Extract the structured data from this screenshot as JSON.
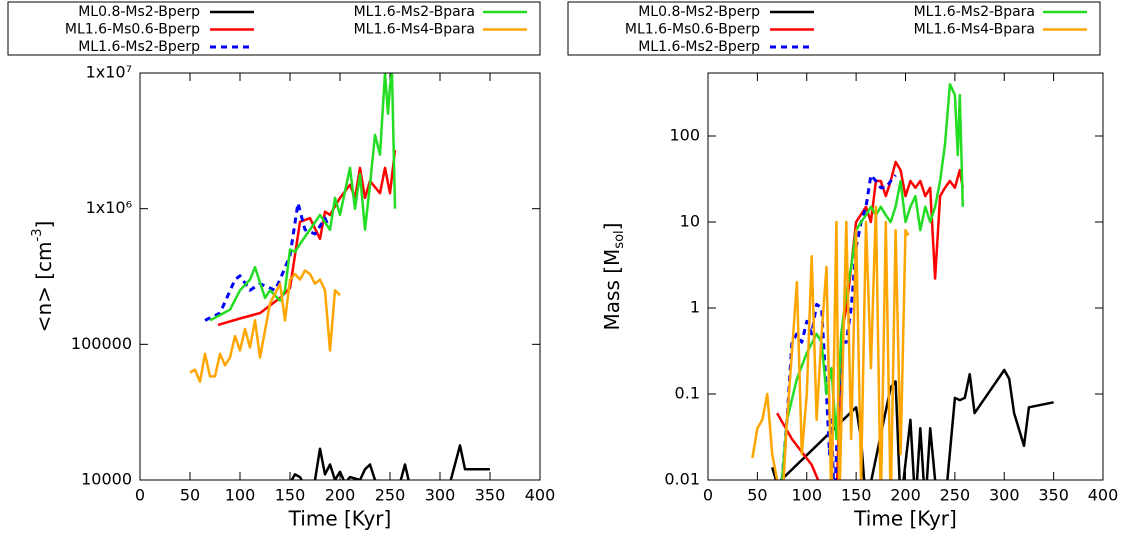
{
  "chart_data": [
    {
      "type": "line",
      "xlabel": "Time [Kyr]",
      "ylabel": {
        "text": "<n> [cm",
        "sup": "-3",
        "end": "]"
      },
      "xlim": [
        0,
        400
      ],
      "xticks": [
        0,
        50,
        100,
        150,
        200,
        250,
        300,
        350,
        400
      ],
      "ylim": [
        10000,
        10000000
      ],
      "ylog": true,
      "yticks": [
        10000,
        100000,
        {
          "value": 1000000,
          "label": "1x10⁶"
        },
        {
          "value": 10000000,
          "label": "1x10⁷"
        }
      ],
      "series": [
        {
          "name": "ML0.8-Ms2-Bperp",
          "color": "#000000",
          "x": [
            150,
            155,
            160,
            165,
            170,
            175,
            180,
            185,
            190,
            195,
            200,
            205,
            210,
            220,
            225,
            230,
            235,
            240,
            250,
            260,
            265,
            270,
            310,
            320,
            325,
            350
          ],
          "values": [
            9500,
            11000,
            10500,
            9000,
            9500,
            10000,
            17000,
            11000,
            13000,
            10000,
            11500,
            9500,
            10500,
            10000,
            12000,
            13000,
            10000,
            9500,
            9000,
            9500,
            13000,
            9000,
            9500,
            18000,
            12000,
            12000
          ]
        },
        {
          "name": "ML1.6-Ms0.6-Bperp",
          "color": "#ff0000",
          "x": [
            78,
            100,
            120,
            140,
            150,
            160,
            170,
            180,
            185,
            190,
            200,
            210,
            215,
            220,
            225,
            230,
            240,
            245,
            250,
            255
          ],
          "values": [
            139000,
            155000,
            170000,
            220000,
            260000,
            800000,
            850000,
            600000,
            950000,
            900000,
            1200000,
            1500000,
            1200000,
            2000000,
            1200000,
            1600000,
            1300000,
            2000000,
            1300000,
            2700000
          ]
        },
        {
          "name": "ML1.6-Ms2-Bperp",
          "color": "#0000ff",
          "dash": true,
          "x": [
            65,
            80,
            95,
            100,
            110,
            120,
            135,
            140,
            150,
            158,
            165,
            175,
            185,
            190
          ],
          "values": [
            150000,
            170000,
            300000,
            320000,
            250000,
            280000,
            250000,
            300000,
            450000,
            1100000,
            700000,
            650000,
            850000,
            700000
          ]
        },
        {
          "name": "ML1.6-Ms2-Bpara",
          "color": "#22dd22",
          "x": [
            70,
            90,
            100,
            110,
            115,
            125,
            130,
            140,
            145,
            150,
            155,
            160,
            170,
            180,
            190,
            195,
            200,
            210,
            215,
            220,
            225,
            230,
            235,
            240,
            245,
            248,
            250,
            252,
            255
          ],
          "values": [
            150000,
            180000,
            250000,
            300000,
            370000,
            220000,
            250000,
            210000,
            250000,
            500000,
            480000,
            550000,
            700000,
            900000,
            700000,
            1200000,
            900000,
            2000000,
            1000000,
            1800000,
            700000,
            1500000,
            3500000,
            2500000,
            10000000,
            5000000,
            8000000,
            10000000,
            1000000
          ]
        },
        {
          "name": "ML1.6-Ms4-Bpara",
          "color": "#ffa500",
          "x": [
            50,
            55,
            60,
            65,
            70,
            75,
            80,
            85,
            90,
            95,
            100,
            105,
            110,
            115,
            120,
            130,
            140,
            145,
            150,
            155,
            160,
            165,
            170,
            175,
            180,
            185,
            190,
            195,
            200
          ],
          "values": [
            62000,
            65000,
            53000,
            85000,
            58000,
            58000,
            85000,
            70000,
            80000,
            115000,
            90000,
            130000,
            95000,
            150000,
            80000,
            200000,
            280000,
            150000,
            300000,
            330000,
            300000,
            350000,
            330000,
            280000,
            300000,
            250000,
            90000,
            250000,
            230000
          ]
        }
      ]
    },
    {
      "type": "line",
      "xlabel": "Time [Kyr]",
      "ylabel": {
        "text": "Mass [M",
        "sub": "sol",
        "end": "]"
      },
      "xlim": [
        0,
        400
      ],
      "xticks": [
        0,
        50,
        100,
        150,
        200,
        250,
        300,
        350,
        400
      ],
      "ylim": [
        0.01,
        540
      ],
      "ylog": true,
      "yticks": [
        0.01,
        0.1,
        1,
        10,
        100
      ],
      "series": [
        {
          "name": "ML0.8-Ms2-Bperp",
          "color": "#000000",
          "x": [
            65,
            70,
            150,
            155,
            160,
            185,
            190,
            195,
            205,
            210,
            215,
            220,
            225,
            230,
            240,
            250,
            255,
            260,
            265,
            270,
            300,
            305,
            310,
            320,
            325,
            350
          ],
          "values": [
            0.014,
            0.009,
            0.07,
            0.03,
            0.005,
            0.12,
            0.14,
            0.005,
            0.05,
            0.005,
            0.04,
            0.005,
            0.04,
            0.01,
            0.005,
            0.09,
            0.085,
            0.09,
            0.17,
            0.06,
            0.19,
            0.15,
            0.06,
            0.025,
            0.07,
            0.08
          ]
        },
        {
          "name": "ML1.6-Ms0.6-Bperp",
          "color": "#ff0000",
          "x": [
            70,
            85,
            105,
            115,
            130,
            135,
            140,
            145,
            150,
            160,
            165,
            170,
            175,
            180,
            185,
            190,
            195,
            200,
            205,
            210,
            215,
            220,
            225,
            230,
            235,
            240,
            245,
            250,
            255,
            258
          ],
          "values": [
            0.06,
            0.03,
            0.015,
            0.008,
            0.005,
            0.5,
            1,
            3,
            10,
            15,
            10,
            30,
            30,
            20,
            30,
            50,
            40,
            20,
            30,
            25,
            30,
            20,
            25,
            2.2,
            20,
            25,
            30,
            25,
            40,
            25
          ]
        },
        {
          "name": "ML1.6-Ms2-Bperp",
          "color": "#0000ff",
          "dash": true,
          "x": [
            75,
            80,
            85,
            90,
            95,
            100,
            105,
            110,
            115,
            120,
            123,
            125,
            128,
            130,
            135,
            140,
            145,
            150,
            155,
            160,
            165,
            170,
            175,
            180,
            185,
            190
          ],
          "values": [
            0.01,
            0.05,
            0.4,
            0.5,
            0.4,
            0.7,
            0.5,
            1.1,
            1,
            0.1,
            0.02,
            0.05,
            0.005,
            0.02,
            0.4,
            0.4,
            1,
            5,
            10,
            15,
            35,
            30,
            25,
            25,
            30,
            35
          ]
        },
        {
          "name": "ML1.6-Ms2-Bpara",
          "color": "#22dd22",
          "x": [
            75,
            80,
            90,
            100,
            110,
            115,
            120,
            125,
            130,
            135,
            140,
            145,
            150,
            155,
            160,
            165,
            170,
            175,
            180,
            185,
            190,
            195,
            200,
            205,
            210,
            215,
            220,
            225,
            230,
            235,
            240,
            245,
            250,
            253,
            255,
            258
          ],
          "values": [
            0.01,
            0.05,
            0.15,
            0.3,
            0.5,
            0.4,
            0.1,
            0.2,
            0.03,
            0.5,
            1.5,
            3,
            8,
            10,
            12,
            15,
            12,
            15,
            12,
            10,
            15,
            30,
            10,
            15,
            20,
            8,
            15,
            10,
            15,
            30,
            80,
            400,
            300,
            60,
            300,
            15
          ]
        },
        {
          "name": "ML1.6-Ms4-Bpara",
          "color": "#ffa500",
          "x": [
            45,
            50,
            55,
            60,
            65,
            70,
            75,
            80,
            85,
            90,
            95,
            100,
            105,
            110,
            115,
            120,
            125,
            130,
            133,
            140,
            145,
            150,
            155,
            160,
            165,
            170,
            175,
            180,
            185,
            190,
            195,
            200,
            203
          ],
          "values": [
            0.018,
            0.04,
            0.05,
            0.1,
            0.02,
            0.01,
            0.005,
            0.05,
            0.3,
            2,
            0.02,
            0.1,
            4,
            0.05,
            0.5,
            3,
            0.005,
            10,
            0.005,
            10,
            0.03,
            8,
            0.01,
            10,
            0.2,
            15,
            0.005,
            10,
            0.005,
            8,
            0.02,
            8,
            7
          ]
        }
      ]
    }
  ]
}
